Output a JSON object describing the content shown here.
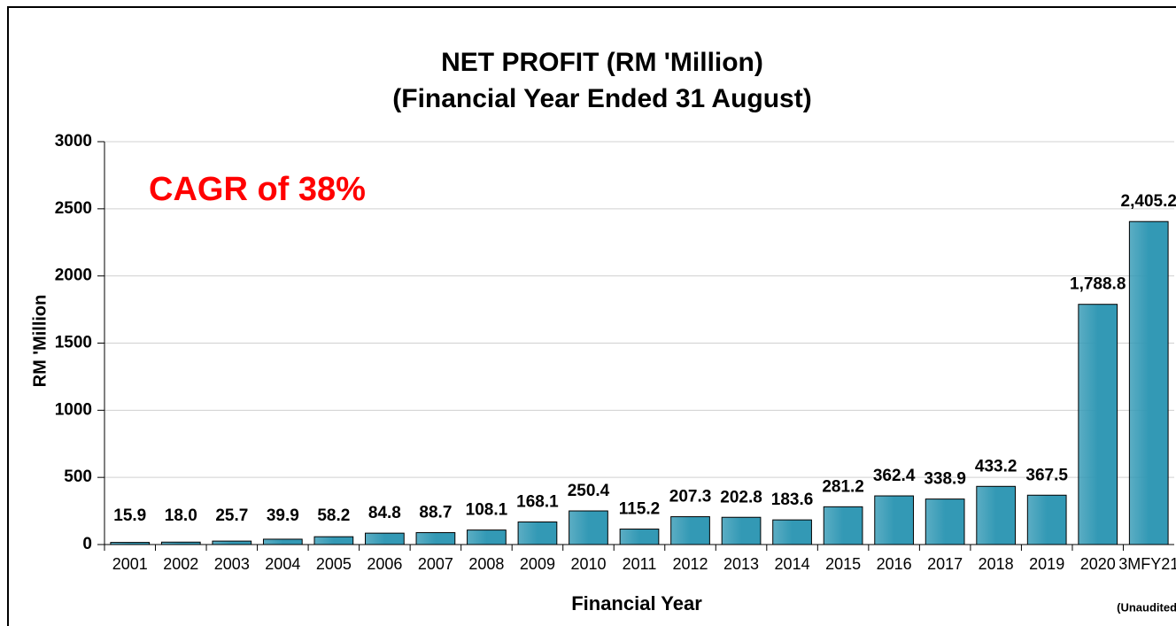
{
  "chart_data": {
    "type": "bar",
    "title": "NET PROFIT (RM 'Million)",
    "subtitle": "(Financial Year Ended 31 August)",
    "y_label": "RM 'Million",
    "x_label": "Financial Year",
    "annotation": "CAGR of 38%",
    "category_note": "(Unaudited)",
    "categories": [
      "2001",
      "2002",
      "2003",
      "2004",
      "2005",
      "2006",
      "2007",
      "2008",
      "2009",
      "2010",
      "2011",
      "2012",
      "2013",
      "2014",
      "2015",
      "2016",
      "2017",
      "2018",
      "2019",
      "2020",
      "3MFY21"
    ],
    "values": [
      15.9,
      18.0,
      25.7,
      39.9,
      58.2,
      84.8,
      88.7,
      108.1,
      168.1,
      250.4,
      115.2,
      207.3,
      202.8,
      183.6,
      281.2,
      362.4,
      338.9,
      433.2,
      367.5,
      1788.8,
      2405.2
    ],
    "value_labels": [
      "15.9",
      "18.0",
      "25.7",
      "39.9",
      "58.2",
      "84.8",
      "88.7",
      "108.1",
      "168.1",
      "250.4",
      "115.2",
      "207.3",
      "202.8",
      "183.6",
      "281.2",
      "362.4",
      "338.9",
      "433.2",
      "367.5",
      "1,788.8",
      "2,405.2"
    ],
    "color": "#3399b5",
    "ylim": [
      0,
      3000
    ],
    "yticks": [
      0,
      500,
      1000,
      1500,
      2000,
      2500,
      3000
    ],
    "grid": true
  }
}
